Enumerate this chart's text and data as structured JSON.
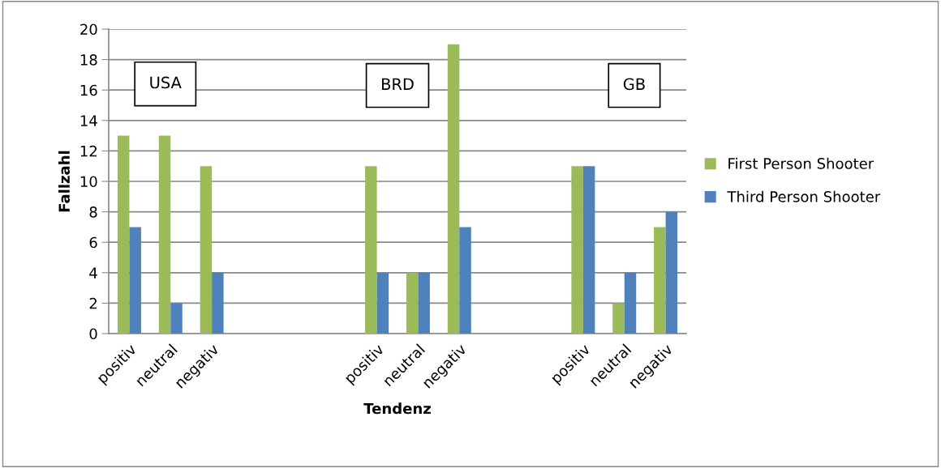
{
  "chart_data": {
    "type": "bar",
    "xlabel": "Tendenz",
    "ylabel": "Fallzahl",
    "categories": [
      "positiv",
      "neutral",
      "negativ",
      null,
      null,
      null,
      "positiv",
      "neutral",
      "negativ",
      null,
      null,
      "positiv",
      "neutral",
      "negativ"
    ],
    "series": [
      {
        "name": "First Person Shooter",
        "color": "#9bbb59",
        "values": [
          13,
          13,
          11,
          null,
          null,
          null,
          11,
          4,
          19,
          null,
          null,
          11,
          2,
          7
        ]
      },
      {
        "name": "Third Person Shooter",
        "color": "#4f81bd",
        "values": [
          7,
          2,
          4,
          null,
          null,
          null,
          4,
          4,
          7,
          null,
          null,
          11,
          4,
          8
        ]
      }
    ],
    "annotations": [
      "USA",
      "BRD",
      "GB"
    ],
    "ylim": [
      0,
      20
    ],
    "yticks": [
      0,
      2,
      4,
      6,
      8,
      10,
      12,
      14,
      16,
      18,
      20
    ],
    "grid": "y",
    "legend": "right"
  }
}
